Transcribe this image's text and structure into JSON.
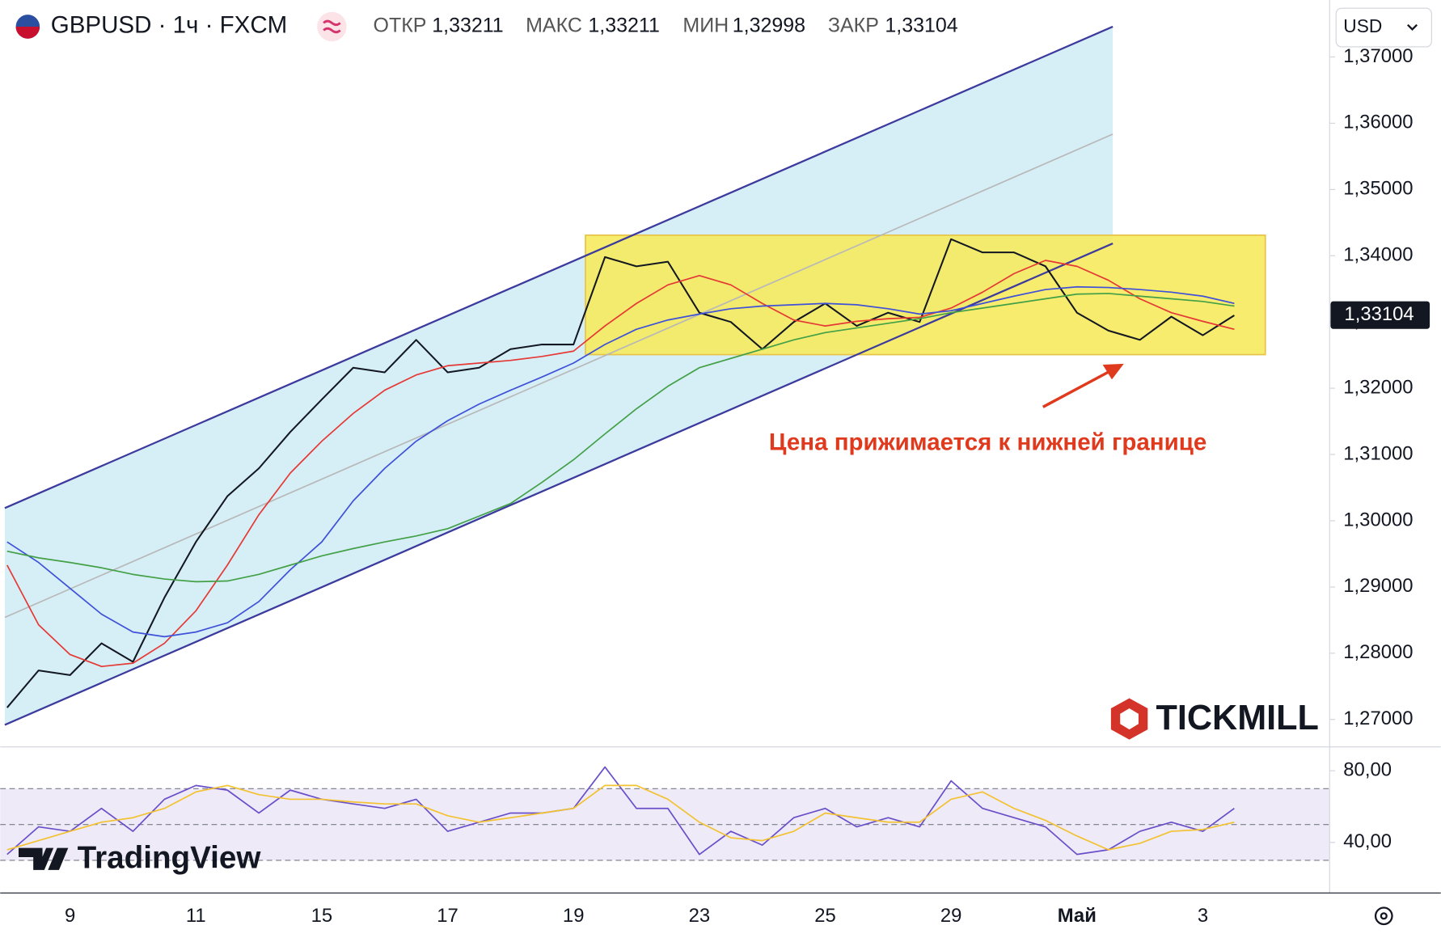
{
  "header": {
    "symbol": "GBPUSD · 1ч · FXCM",
    "ohlc": [
      {
        "label": "ОТКР",
        "value": "1,33211"
      },
      {
        "label": "МАКС",
        "value": "1,33211"
      },
      {
        "label": "МИН",
        "value": "1,32998"
      },
      {
        "label": "ЗАКР",
        "value": "1,33104"
      }
    ]
  },
  "ui": {
    "currency": "USD",
    "broker_logo": "TICKMILL",
    "platform_logo": "TradingView"
  },
  "chart_data": [
    {
      "type": "line",
      "annotation": "Цена прижимается к нижней границе",
      "categories": [
        null,
        null,
        "9",
        null,
        null,
        null,
        "11",
        null,
        null,
        null,
        "15",
        null,
        null,
        null,
        "17",
        null,
        null,
        null,
        "19",
        null,
        null,
        null,
        "23",
        null,
        null,
        null,
        "25",
        null,
        null,
        null,
        "29",
        null,
        null,
        null,
        "Май",
        null,
        null,
        null,
        "3",
        null
      ],
      "series": [
        {
          "color": "#131722",
          "values": [
            1.2718,
            1.2774,
            1.2767,
            1.2815,
            1.2787,
            1.2884,
            1.2968,
            1.3037,
            1.3079,
            1.3134,
            1.3183,
            1.3231,
            1.3224,
            1.3273,
            1.3224,
            1.3231,
            1.3259,
            1.3266,
            1.3266,
            1.3398,
            1.3384,
            1.3391,
            1.3314,
            1.33,
            1.3259,
            1.33,
            1.3328,
            1.3294,
            1.3314,
            1.33,
            1.3425,
            1.3405,
            1.3405,
            1.3384,
            1.3314,
            1.3287,
            1.3273,
            1.3308,
            1.328,
            1.331
          ]
        },
        {
          "color": "#e53935",
          "values": [
            1.2933,
            1.2843,
            1.2798,
            1.278,
            1.2785,
            1.2815,
            1.2864,
            1.2933,
            1.3009,
            1.3072,
            1.312,
            1.3162,
            1.3197,
            1.322,
            1.3234,
            1.3238,
            1.3242,
            1.3248,
            1.3256,
            1.3294,
            1.3328,
            1.3356,
            1.337,
            1.3356,
            1.3328,
            1.3303,
            1.3294,
            1.3301,
            1.3305,
            1.3307,
            1.3321,
            1.3345,
            1.3373,
            1.3393,
            1.3384,
            1.3363,
            1.3335,
            1.3314,
            1.3301,
            1.3289
          ]
        },
        {
          "color": "#3f51d8",
          "values": [
            1.2968,
            1.2937,
            1.2898,
            1.2859,
            1.2832,
            1.2825,
            1.2832,
            1.2846,
            1.2878,
            1.2926,
            1.2968,
            1.303,
            1.3079,
            1.312,
            1.3151,
            1.3176,
            1.3197,
            1.3217,
            1.3238,
            1.3266,
            1.3289,
            1.3303,
            1.3312,
            1.332,
            1.3324,
            1.3326,
            1.3328,
            1.3326,
            1.332,
            1.3312,
            1.3317,
            1.3328,
            1.3339,
            1.3349,
            1.3353,
            1.3352,
            1.3349,
            1.3345,
            1.3339,
            1.3328
          ]
        },
        {
          "color": "#43a047",
          "values": [
            1.2954,
            1.2944,
            1.2937,
            1.2929,
            1.2919,
            1.2912,
            1.2908,
            1.2909,
            1.2919,
            1.2933,
            1.2947,
            1.2958,
            1.2968,
            1.2977,
            1.2988,
            1.3007,
            1.3026,
            1.3058,
            1.3092,
            1.3131,
            1.3169,
            1.3203,
            1.3231,
            1.3245,
            1.3259,
            1.3273,
            1.3284,
            1.3291,
            1.3298,
            1.3305,
            1.3314,
            1.3321,
            1.3328,
            1.3335,
            1.3342,
            1.3343,
            1.3339,
            1.3335,
            1.3331,
            1.3324
          ]
        }
      ],
      "last_value": {
        "value": 1.33104,
        "label": "1,33104"
      },
      "ylim": [
        1.266,
        1.3786
      ],
      "yticks": [
        {
          "value": 1.27,
          "label": "1,27000"
        },
        {
          "value": 1.28,
          "label": "1,28000"
        },
        {
          "value": 1.29,
          "label": "1,29000"
        },
        {
          "value": 1.3,
          "label": "1,30000"
        },
        {
          "value": 1.31,
          "label": "1,31000"
        },
        {
          "value": 1.32,
          "label": "1,32000"
        },
        {
          "value": 1.33,
          "label": "1,33000"
        },
        {
          "value": 1.34,
          "label": "1,34000"
        },
        {
          "value": 1.35,
          "label": "1,35000"
        },
        {
          "value": 1.36,
          "label": "1,36000"
        },
        {
          "value": 1.37,
          "label": "1,37000"
        }
      ]
    },
    {
      "type": "line",
      "series": [
        {
          "color": "#6a4fc9",
          "values": [
            33.3,
            48.7,
            46.2,
            59,
            46.2,
            64.1,
            71.8,
            69.2,
            56.4,
            69.2,
            64.1,
            61.5,
            59,
            64.1,
            46.2,
            51.3,
            56.4,
            56.4,
            59,
            82.1,
            59,
            59,
            33.3,
            46.2,
            38.5,
            53.8,
            59,
            48.7,
            53.8,
            48.7,
            74.4,
            59,
            53.8,
            48.7,
            33.3,
            35.9,
            46.2,
            51.3,
            46.2,
            59
          ]
        },
        {
          "color": "#f2c230",
          "values": [
            35.9,
            41,
            46.2,
            51.3,
            53.8,
            59,
            68.2,
            71.8,
            66.7,
            64.1,
            64.1,
            62.6,
            61.5,
            61.5,
            54.9,
            51.3,
            53.8,
            56.4,
            59,
            71.8,
            71.8,
            64.1,
            51.3,
            42.6,
            41,
            46.2,
            56.4,
            53.8,
            51.3,
            51.3,
            64.1,
            68.2,
            59,
            52.3,
            43.6,
            35.9,
            39.5,
            46.2,
            47.2,
            51.3
          ]
        }
      ],
      "levels": [
        30,
        50,
        70
      ],
      "ylim": [
        12.8,
        92.3
      ],
      "yticks": [
        {
          "value": 80,
          "label": "80,00"
        },
        {
          "value": 40,
          "label": "40,00"
        }
      ]
    }
  ]
}
